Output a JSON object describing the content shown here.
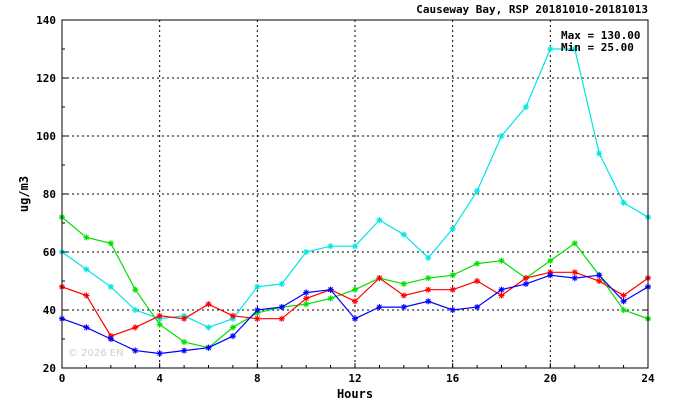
{
  "chart_data": {
    "type": "line",
    "title": "Causeway Bay, RSP 20181010-20181013",
    "xlabel": "Hours",
    "ylabel": "ug/m3",
    "xlim": [
      0,
      24
    ],
    "ylim": [
      20,
      140
    ],
    "xticks": [
      0,
      4,
      8,
      12,
      16,
      20,
      24
    ],
    "yticks": [
      20,
      40,
      60,
      80,
      100,
      120,
      140
    ],
    "grid": true,
    "stats": {
      "max_label": "Max = 130.00",
      "min_label": "Min =  25.00"
    },
    "watermark": "© 2026  EN",
    "x": [
      0,
      1,
      2,
      3,
      4,
      5,
      6,
      7,
      8,
      9,
      10,
      11,
      12,
      13,
      14,
      15,
      16,
      17,
      18,
      19,
      20,
      21,
      22,
      23,
      24
    ],
    "series": [
      {
        "color": "#00e5e5",
        "values": [
          60,
          54,
          48,
          40,
          37,
          38,
          34,
          37,
          48,
          49,
          60,
          62,
          62,
          71,
          66,
          58,
          68,
          81,
          100,
          110,
          130,
          130,
          94,
          77,
          72
        ]
      },
      {
        "color": "#00e000",
        "values": [
          72,
          65,
          63,
          47,
          35,
          29,
          27,
          34,
          39,
          41,
          42,
          44,
          47,
          51,
          49,
          51,
          52,
          56,
          57,
          51,
          57,
          63,
          52,
          40,
          37
        ]
      },
      {
        "color": "#ff0000",
        "values": [
          48,
          45,
          31,
          34,
          38,
          37,
          42,
          38,
          37,
          37,
          44,
          47,
          43,
          51,
          45,
          47,
          47,
          50,
          45,
          51,
          53,
          53,
          50,
          45,
          51
        ]
      },
      {
        "color": "#0000ff",
        "values": [
          37,
          34,
          30,
          26,
          25,
          26,
          27,
          31,
          40,
          41,
          46,
          47,
          37,
          41,
          41,
          43,
          40,
          41,
          47,
          49,
          52,
          51,
          52,
          43,
          48
        ]
      }
    ]
  }
}
